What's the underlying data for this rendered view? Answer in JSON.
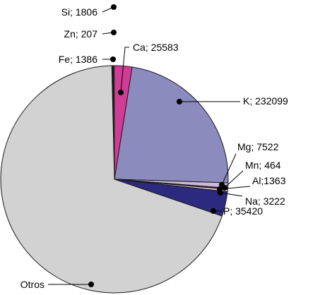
{
  "chart_data": {
    "type": "pie",
    "title": "",
    "labels": [
      "Si",
      "Zn",
      "Fe",
      "Ca",
      "K",
      "Mg",
      "Mn",
      "Al",
      "Na",
      "P",
      "Otros"
    ],
    "values": [
      1806,
      207,
      1386,
      25583,
      232099,
      7522,
      464,
      1363,
      3222,
      35420,
      700000
    ],
    "data_labels": [
      "Si; 1806",
      "Zn; 207",
      "Fe; 1386",
      "Ca; 25583",
      "K; 232099",
      "Mg; 7522",
      "Mn; 464",
      "Al;1363",
      "Na; 3222",
      "P; 35420",
      "Otros"
    ],
    "colors": [
      "#1c1c1c",
      "#2c2c2c",
      "#3a3a3a",
      "#d13c96",
      "#8b8bbd",
      "#c9b8d8",
      "#d98fb5",
      "#e7a0c6",
      "#efd0e0",
      "#2b2a7e",
      "#d2d2d2"
    ],
    "legend": "none"
  }
}
